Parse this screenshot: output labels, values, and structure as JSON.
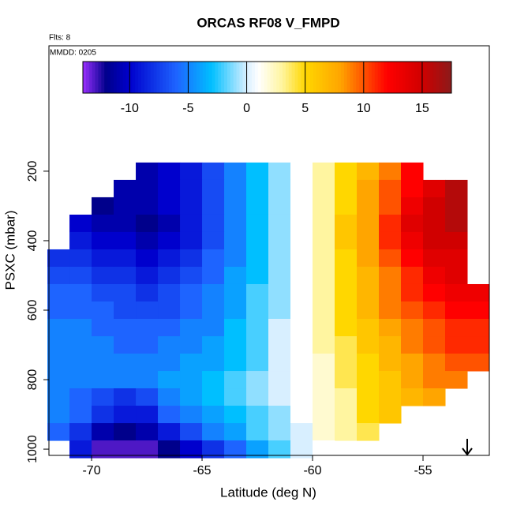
{
  "chart_data": {
    "type": "heatmap",
    "title": "ORCAS RF08 V_FMPD",
    "subtitle": "Flts: 8",
    "annotation": "MMDD: 0205",
    "xlabel": "Latitude (deg N)",
    "ylabel": "PSXC (mbar)",
    "x": [
      -71.5,
      -70.5,
      -69.5,
      -68.5,
      -67.5,
      -66.5,
      -65.5,
      -64.5,
      -63.5,
      -62.5,
      -61.5,
      -60.5,
      -59.5,
      -58.5,
      -57.5,
      -56.5,
      -55.5,
      -54.5,
      -53.5,
      -52.5
    ],
    "y": [
      200,
      250,
      300,
      350,
      400,
      450,
      500,
      550,
      600,
      650,
      700,
      750,
      800,
      850,
      900,
      950,
      1000
    ],
    "z": [
      [
        null,
        null,
        null,
        null,
        -11,
        -10,
        -9,
        -7,
        -5,
        -3,
        -1,
        1,
        3,
        5,
        7,
        9,
        12,
        null,
        null,
        null
      ],
      [
        null,
        null,
        null,
        -11,
        -11,
        -10,
        -9,
        -7,
        -5,
        -3,
        -1,
        1,
        3,
        5,
        8,
        10,
        12,
        14,
        16,
        null
      ],
      [
        null,
        null,
        -12,
        -11,
        -11,
        -10,
        -9,
        -7,
        -5,
        -3,
        -1,
        1,
        3,
        5,
        8,
        10,
        13,
        15,
        16,
        null
      ],
      [
        null,
        -10,
        -11,
        -11,
        -12,
        -11,
        -9,
        -7,
        -5,
        -3,
        -1,
        1,
        3,
        6,
        8,
        11,
        14,
        15,
        16,
        null
      ],
      [
        null,
        -9,
        -10,
        -10,
        -11,
        -10,
        -9,
        -7,
        -5,
        -3,
        -1,
        1,
        3,
        6,
        8,
        11,
        13,
        15,
        15,
        null
      ],
      [
        -8,
        -8,
        -9,
        -9,
        -10,
        -9,
        -8,
        -6,
        -5,
        -3,
        -1,
        1,
        3,
        5,
        8,
        10,
        12,
        14,
        14,
        null
      ],
      [
        -7,
        -7,
        -8,
        -8,
        -9,
        -8,
        -7,
        -6,
        -4,
        -3,
        -1,
        1,
        3,
        5,
        7,
        9,
        11,
        13,
        14,
        null
      ],
      [
        -6,
        -6,
        -7,
        -7,
        -8,
        -7,
        -6,
        -5,
        -4,
        -2,
        -1,
        1,
        3,
        5,
        7,
        9,
        11,
        12,
        13,
        13
      ],
      [
        -6,
        -6,
        -6,
        -7,
        -7,
        -7,
        -6,
        -5,
        -4,
        -2,
        -1,
        1,
        3,
        5,
        7,
        9,
        10,
        11,
        12,
        12
      ],
      [
        -5,
        -5,
        -6,
        -6,
        -6,
        -6,
        -5,
        -5,
        -3,
        -2,
        0,
        1,
        3,
        5,
        6,
        8,
        9,
        10,
        11,
        11
      ],
      [
        -5,
        -5,
        -5,
        -6,
        -6,
        -5,
        -5,
        -4,
        -3,
        -2,
        0,
        1,
        3,
        4,
        6,
        7,
        9,
        10,
        11,
        11
      ],
      [
        -5,
        -5,
        -5,
        -5,
        -5,
        -5,
        -4,
        -4,
        -3,
        -2,
        0,
        1,
        2,
        4,
        5,
        7,
        8,
        9,
        10,
        10
      ],
      [
        -5,
        -5,
        -5,
        -5,
        -5,
        -4,
        -4,
        -3,
        -2,
        -1,
        0,
        1,
        2,
        4,
        5,
        6,
        8,
        9,
        9,
        null
      ],
      [
        -5,
        -6,
        -7,
        -8,
        -7,
        -5,
        -4,
        -3,
        -2,
        -1,
        0,
        1,
        2,
        3,
        5,
        6,
        7,
        8,
        null,
        null
      ],
      [
        -5,
        -6,
        -8,
        -9,
        -9,
        -6,
        -5,
        -4,
        -3,
        -2,
        -1,
        1,
        2,
        3,
        5,
        6,
        null,
        null,
        null,
        null
      ],
      [
        -6,
        -8,
        -11,
        -12,
        -11,
        -9,
        -7,
        -5,
        -4,
        -2,
        -1,
        0,
        2,
        3,
        4,
        null,
        null,
        null,
        null,
        null
      ],
      [
        null,
        -9,
        -13,
        -13,
        -13,
        -12,
        -10,
        -8,
        -6,
        -4,
        -2,
        0,
        1,
        null,
        null,
        null,
        null,
        null,
        null,
        null
      ]
    ],
    "xlim": [
      -71.93,
      -52
    ],
    "ylim": [
      1018,
      -161
    ],
    "xticks": [
      -70,
      -65,
      -60,
      -55
    ],
    "yticks": [
      200,
      400,
      600,
      800,
      1000
    ],
    "colorscale": [
      [
        -14,
        "#9b30ff"
      ],
      [
        -12,
        "#00008b"
      ],
      [
        -10,
        "#0000cd"
      ],
      [
        -6,
        "#1e64ff"
      ],
      [
        -3,
        "#00bfff"
      ],
      [
        0,
        "#d8efff"
      ],
      [
        1,
        "#ffffff"
      ],
      [
        3,
        "#fff5a0"
      ],
      [
        5,
        "#ffd700"
      ],
      [
        8,
        "#ffa500"
      ],
      [
        12,
        "#ff0000"
      ],
      [
        15,
        "#d00000"
      ],
      [
        17.5,
        "#8b1a1a"
      ]
    ],
    "colorbar_lim": [
      -14,
      17.5
    ],
    "colorbar_ticks": [
      -10,
      -5,
      0,
      5,
      10,
      15
    ]
  }
}
